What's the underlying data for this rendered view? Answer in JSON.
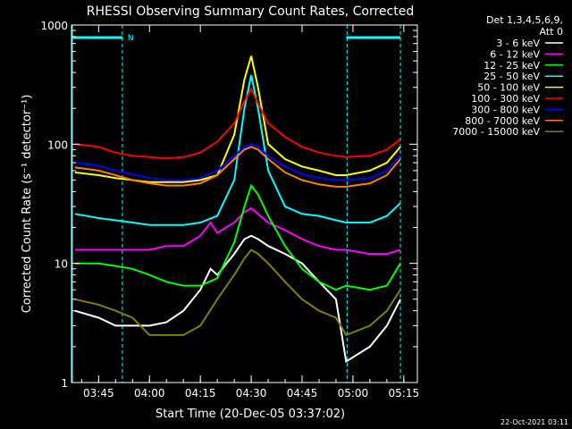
{
  "colors": {
    "background": "#000000",
    "axis": "#ffffff",
    "night_marker": "#00ffff"
  },
  "chart_data": {
    "type": "line",
    "title": "RHESSI Observing Summary Count Rates, Corrected",
    "xlabel": "Start Time (20-Dec-05 03:37:02)",
    "ylabel": "Corrected Count Rate (s⁻¹ detector⁻¹)",
    "y_scale": "log",
    "ylim": [
      1,
      1000
    ],
    "xlim": [
      "03:37",
      "05:19"
    ],
    "x_ticks": [
      "03:45",
      "04:00",
      "04:15",
      "04:30",
      "04:45",
      "05:00",
      "05:15"
    ],
    "y_ticks": [
      "1",
      "10",
      "100",
      "1000"
    ],
    "legend_position": "right",
    "legend_header": [
      "Det 1,3,4,5,6,9,",
      "Att 0"
    ],
    "night_intervals": [
      {
        "start": "03:37",
        "end": "03:52",
        "label": "N"
      },
      {
        "start": "04:58",
        "end": "05:14",
        "label": ""
      }
    ],
    "series": [
      {
        "name": "3 - 6 keV",
        "color": "#ffffff",
        "x": [
          "03:38",
          "03:45",
          "03:50",
          "03:55",
          "04:00",
          "04:05",
          "04:10",
          "04:15",
          "04:18",
          "04:20",
          "04:25",
          "04:28",
          "04:30",
          "04:32",
          "04:35",
          "04:40",
          "04:45",
          "04:50",
          "04:55",
          "04:58",
          "05:05",
          "05:10",
          "05:14"
        ],
        "values": [
          4,
          3.5,
          3,
          3,
          3,
          3.2,
          4,
          6,
          9,
          8,
          12,
          16,
          17,
          16,
          14,
          12,
          10,
          7,
          5,
          1.5,
          2,
          3,
          5
        ]
      },
      {
        "name": "6 - 12 keV",
        "color": "#ff00ff",
        "x": [
          "03:38",
          "03:45",
          "03:50",
          "03:55",
          "04:00",
          "04:05",
          "04:10",
          "04:15",
          "04:18",
          "04:20",
          "04:25",
          "04:28",
          "04:30",
          "04:32",
          "04:35",
          "04:40",
          "04:45",
          "04:50",
          "04:55",
          "04:58",
          "05:05",
          "05:10",
          "05:14"
        ],
        "values": [
          13,
          13,
          13,
          13,
          13,
          14,
          14,
          17,
          22,
          18,
          22,
          27,
          29,
          26,
          22,
          19,
          16,
          14,
          13,
          13,
          12,
          12,
          13
        ]
      },
      {
        "name": "12 - 25 keV",
        "color": "#00ff00",
        "x": [
          "03:38",
          "03:45",
          "03:50",
          "03:55",
          "04:00",
          "04:05",
          "04:10",
          "04:15",
          "04:20",
          "04:25",
          "04:28",
          "04:30",
          "04:32",
          "04:35",
          "04:40",
          "04:45",
          "04:50",
          "04:55",
          "04:58",
          "05:05",
          "05:10",
          "05:14"
        ],
        "values": [
          10,
          10,
          9.5,
          9,
          8,
          7,
          6.5,
          6.5,
          7.5,
          15,
          30,
          45,
          38,
          25,
          14,
          9,
          7,
          6,
          6.5,
          6,
          6.5,
          10
        ]
      },
      {
        "name": "25 - 50 keV",
        "color": "#00ffff",
        "x": [
          "03:38",
          "03:45",
          "03:50",
          "03:55",
          "04:00",
          "04:05",
          "04:10",
          "04:15",
          "04:20",
          "04:25",
          "04:28",
          "04:30",
          "04:32",
          "04:35",
          "04:40",
          "04:45",
          "04:50",
          "04:55",
          "04:58",
          "05:05",
          "05:10",
          "05:14"
        ],
        "values": [
          26,
          24,
          23,
          22,
          21,
          21,
          21,
          22,
          25,
          50,
          200,
          380,
          200,
          60,
          30,
          26,
          25,
          23,
          22,
          22,
          25,
          32
        ]
      },
      {
        "name": "50 - 100 keV",
        "color": "#ffff00",
        "x": [
          "03:38",
          "03:45",
          "03:50",
          "03:55",
          "04:00",
          "04:05",
          "04:10",
          "04:15",
          "04:20",
          "04:25",
          "04:28",
          "04:30",
          "04:32",
          "04:35",
          "04:40",
          "04:45",
          "04:50",
          "04:55",
          "04:58",
          "05:05",
          "05:10",
          "05:14"
        ],
        "values": [
          58,
          55,
          52,
          50,
          48,
          48,
          48,
          50,
          55,
          120,
          350,
          550,
          300,
          100,
          75,
          65,
          60,
          55,
          55,
          60,
          70,
          95
        ]
      },
      {
        "name": "100 - 300 keV",
        "color": "#ff0000",
        "x": [
          "03:38",
          "03:45",
          "03:50",
          "03:55",
          "04:00",
          "04:05",
          "04:10",
          "04:15",
          "04:20",
          "04:25",
          "04:28",
          "04:30",
          "04:32",
          "04:35",
          "04:40",
          "04:45",
          "04:50",
          "04:55",
          "04:58",
          "05:05",
          "05:10",
          "05:14"
        ],
        "values": [
          100,
          95,
          85,
          80,
          78,
          76,
          78,
          85,
          105,
          150,
          230,
          290,
          220,
          150,
          115,
          95,
          85,
          80,
          78,
          80,
          90,
          110
        ]
      },
      {
        "name": "300 - 800 keV",
        "color": "#0000ff",
        "x": [
          "03:38",
          "03:45",
          "03:50",
          "03:55",
          "04:00",
          "04:05",
          "04:10",
          "04:15",
          "04:20",
          "04:25",
          "04:28",
          "04:30",
          "04:32",
          "04:35",
          "04:40",
          "04:45",
          "04:50",
          "04:55",
          "04:58",
          "05:05",
          "05:10",
          "05:14"
        ],
        "values": [
          70,
          66,
          60,
          56,
          52,
          50,
          50,
          52,
          60,
          80,
          95,
          100,
          95,
          80,
          65,
          56,
          52,
          50,
          50,
          52,
          60,
          80
        ]
      },
      {
        "name": "800 - 7000 keV",
        "color": "#ff8000",
        "x": [
          "03:38",
          "03:45",
          "03:50",
          "03:55",
          "04:00",
          "04:05",
          "04:10",
          "04:15",
          "04:20",
          "04:25",
          "04:28",
          "04:30",
          "04:32",
          "04:35",
          "04:40",
          "04:45",
          "04:50",
          "04:55",
          "04:58",
          "05:05",
          "05:10",
          "05:14"
        ],
        "values": [
          64,
          60,
          55,
          50,
          47,
          45,
          45,
          47,
          55,
          75,
          90,
          95,
          90,
          75,
          58,
          50,
          46,
          44,
          44,
          47,
          55,
          75
        ]
      },
      {
        "name": "7000 - 15000 keV",
        "color": "#808000",
        "x": [
          "03:38",
          "03:45",
          "03:50",
          "03:55",
          "04:00",
          "04:05",
          "04:10",
          "04:15",
          "04:20",
          "04:25",
          "04:28",
          "04:30",
          "04:32",
          "04:35",
          "04:40",
          "04:45",
          "04:50",
          "04:55",
          "04:58",
          "05:05",
          "05:10",
          "05:14"
        ],
        "values": [
          5,
          4.5,
          4,
          3.5,
          2.5,
          2.5,
          2.5,
          3,
          5,
          8,
          11,
          13,
          12,
          10,
          7,
          5,
          4,
          3.5,
          2.5,
          3,
          4,
          6
        ]
      }
    ]
  },
  "footer": {
    "timestamp": "22-Oct-2021 03:11"
  }
}
